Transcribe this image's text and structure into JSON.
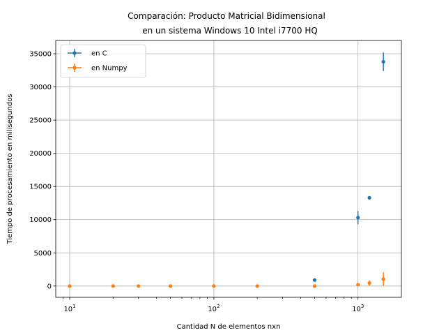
{
  "chart_data": {
    "type": "scatter",
    "title": [
      "Comparación: Producto Matricial Bidimensional",
      "en un sistema Windows 10 Intel i7700 HQ"
    ],
    "xlabel": "Cantidad N de elementos nxn",
    "ylabel": "Tiempo de procesamiento en milisegundos",
    "xscale": "log",
    "xlim": [
      8,
      2000
    ],
    "ylim": [
      -1700,
      37000
    ],
    "grid": true,
    "x_ticks": [
      {
        "value": 10,
        "base": "10",
        "exp": "1"
      },
      {
        "value": 100,
        "base": "10",
        "exp": "2"
      },
      {
        "value": 1000,
        "base": "10",
        "exp": "3"
      }
    ],
    "y_ticks": [
      0,
      5000,
      10000,
      15000,
      20000,
      25000,
      30000,
      35000
    ],
    "y_tick_labels": [
      "0",
      "5000",
      "10000",
      "15000",
      "20000",
      "25000",
      "30000",
      "35000"
    ],
    "legend_position": "upper-left",
    "series": [
      {
        "name": "en C",
        "color": "#1f77b4",
        "points": [
          {
            "x": 500,
            "y": 900,
            "err": 0
          },
          {
            "x": 1000,
            "y": 10300,
            "err": 1000
          },
          {
            "x": 1200,
            "y": 13300,
            "err": 0
          },
          {
            "x": 1500,
            "y": 33800,
            "err": 1400
          }
        ]
      },
      {
        "name": "en Numpy",
        "color": "#ff7f0e",
        "points": [
          {
            "x": 10,
            "y": 0,
            "err": 0
          },
          {
            "x": 20,
            "y": 0,
            "err": 0
          },
          {
            "x": 30,
            "y": 0,
            "err": 0
          },
          {
            "x": 50,
            "y": 0,
            "err": 0
          },
          {
            "x": 100,
            "y": 0,
            "err": 0
          },
          {
            "x": 200,
            "y": 0,
            "err": 0
          },
          {
            "x": 500,
            "y": 0,
            "err": 0
          },
          {
            "x": 1000,
            "y": 200,
            "err": 0
          },
          {
            "x": 1200,
            "y": 450,
            "err": 400
          },
          {
            "x": 1500,
            "y": 1050,
            "err": 1000
          }
        ]
      }
    ]
  }
}
